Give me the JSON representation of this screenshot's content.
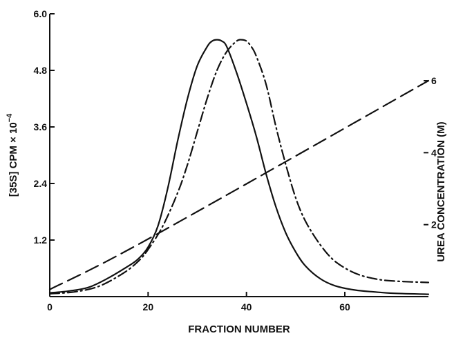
{
  "chart_data": {
    "type": "line",
    "xlabel": "FRACTION NUMBER",
    "ylabel": "[35S] CPM × 10",
    "ylabel_exponent": "−4",
    "y2label": "UREA CONCENTRATION (M)",
    "xlim": [
      0,
      77
    ],
    "ylim": [
      0,
      6.0
    ],
    "y2lim": [
      0,
      7.86
    ],
    "x_ticks": [
      0,
      20,
      40,
      60
    ],
    "x_tick_labels": [
      "0",
      "20",
      "40",
      "60"
    ],
    "y_ticks": [
      1.2,
      2.4,
      3.6,
      4.8,
      6.0
    ],
    "y_tick_labels": [
      "1.2",
      "2.4",
      "3.6",
      "4.8",
      "6.0"
    ],
    "y2_ticks": [
      2,
      4,
      6
    ],
    "y2_tick_labels": [
      "2",
      "4",
      "6"
    ],
    "grid": false,
    "legend": "none",
    "series": [
      {
        "style": "solid",
        "axis": "left",
        "x": [
          0,
          4,
          8,
          12,
          16,
          18,
          20,
          22,
          24,
          26,
          28,
          30,
          32,
          33,
          34,
          35,
          36,
          38,
          40,
          42,
          44,
          46,
          48,
          50,
          52,
          55,
          58,
          62,
          66,
          70,
          77
        ],
        "y": [
          0.08,
          0.12,
          0.2,
          0.4,
          0.65,
          0.8,
          1.05,
          1.5,
          2.3,
          3.3,
          4.2,
          4.9,
          5.3,
          5.42,
          5.45,
          5.42,
          5.3,
          4.75,
          4.1,
          3.4,
          2.6,
          1.9,
          1.35,
          0.95,
          0.65,
          0.38,
          0.23,
          0.14,
          0.1,
          0.07,
          0.05
        ]
      },
      {
        "style": "dash-dot",
        "axis": "left",
        "x": [
          0,
          5,
          10,
          15,
          18,
          20,
          23,
          26,
          28,
          30,
          32,
          34,
          36,
          38,
          39,
          40,
          41,
          42,
          44,
          46,
          48,
          50,
          52,
          55,
          58,
          62,
          66,
          70,
          77
        ],
        "y": [
          0.06,
          0.1,
          0.22,
          0.5,
          0.75,
          1.0,
          1.5,
          2.2,
          2.8,
          3.5,
          4.2,
          4.8,
          5.2,
          5.42,
          5.45,
          5.42,
          5.3,
          5.1,
          4.5,
          3.6,
          2.8,
          2.1,
          1.6,
          1.1,
          0.75,
          0.5,
          0.38,
          0.33,
          0.3
        ]
      },
      {
        "style": "dashed",
        "axis": "right",
        "x": [
          0,
          20,
          77
        ],
        "y": [
          0.2,
          1.6,
          6.0
        ]
      }
    ]
  }
}
